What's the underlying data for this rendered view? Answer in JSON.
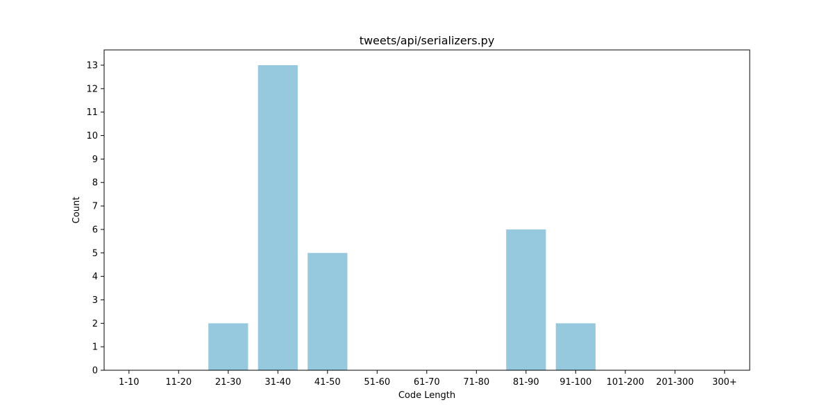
{
  "chart_data": {
    "type": "bar",
    "title": "tweets/api/serializers.py",
    "xlabel": "Code Length",
    "ylabel": "Count",
    "categories": [
      "1-10",
      "11-20",
      "21-30",
      "31-40",
      "41-50",
      "51-60",
      "61-70",
      "71-80",
      "81-90",
      "91-100",
      "101-200",
      "201-300",
      "300+"
    ],
    "values": [
      0,
      0,
      2,
      13,
      5,
      0,
      0,
      0,
      6,
      2,
      0,
      0,
      0
    ],
    "yticks": [
      "0",
      "1",
      "2",
      "3",
      "4",
      "5",
      "6",
      "7",
      "8",
      "9",
      "10",
      "11",
      "12",
      "13"
    ],
    "ylim": [
      0,
      13.65
    ],
    "grid": false,
    "bar_color": "#96c9de"
  }
}
